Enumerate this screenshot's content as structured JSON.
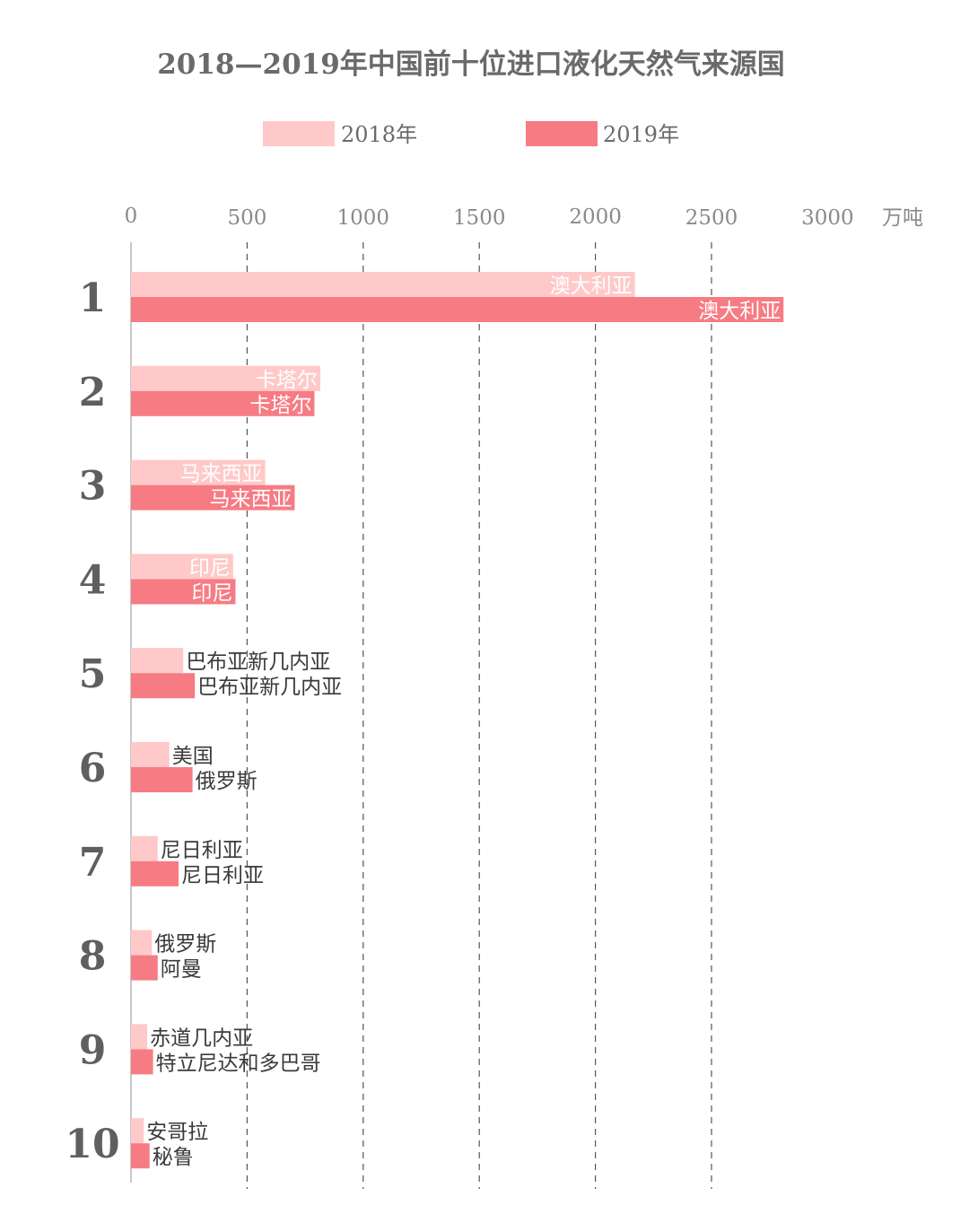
{
  "chart_data": {
    "type": "bar",
    "orientation": "horizontal",
    "title": "2018—2019年中国前十位进口液化天然气来源国",
    "unit": "万吨",
    "xlim": [
      0,
      3000
    ],
    "x_ticks": [
      0,
      500,
      1000,
      1500,
      2000,
      2500,
      3000
    ],
    "grid": "dashed-vertical",
    "legend_position": "top",
    "colors": {
      "2018": "#ffc9c9",
      "2019": "#f77b83"
    },
    "ranks": [
      "1",
      "2",
      "3",
      "4",
      "5",
      "6",
      "7",
      "8",
      "9",
      "10"
    ],
    "series": [
      {
        "name": "2018年",
        "countries": [
          "澳大利亚",
          "卡塔尔",
          "马来西亚",
          "印尼",
          "巴布亚新几内亚",
          "美国",
          "尼日利亚",
          "俄罗斯",
          "赤道几内亚",
          "安哥拉"
        ],
        "values": [
          2170,
          815,
          578,
          440,
          225,
          165,
          115,
          90,
          70,
          55
        ]
      },
      {
        "name": "2019年",
        "countries": [
          "澳大利亚",
          "卡塔尔",
          "马来西亚",
          "印尼",
          "巴布亚新几内亚",
          "俄罗斯",
          "尼日利亚",
          "阿曼",
          "特立尼达和多巴哥",
          "秘鲁"
        ],
        "values": [
          2810,
          790,
          705,
          450,
          275,
          265,
          205,
          115,
          95,
          80
        ]
      }
    ]
  }
}
